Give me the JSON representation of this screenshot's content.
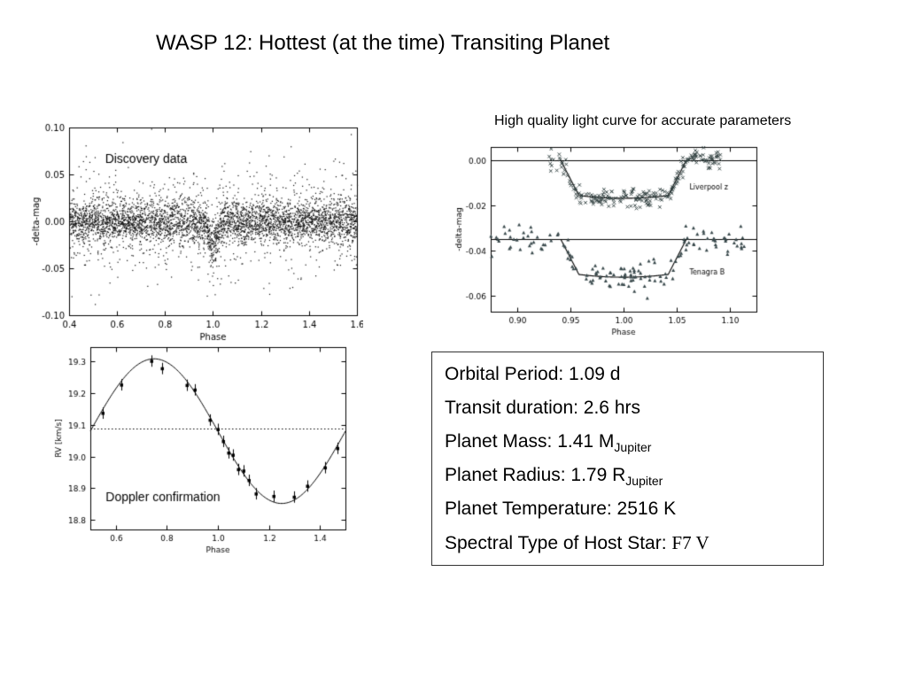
{
  "slide": {
    "title": "WASP 12: Hottest (at the time) Transiting Planet"
  },
  "info_box": {
    "lines": [
      {
        "main": "Orbital Period: 1.09 d"
      },
      {
        "main": "Transit duration: 2.6 hrs"
      },
      {
        "main": "Planet Mass: 1.41 M",
        "subscript": "Jupiter"
      },
      {
        "main": "Planet Radius: 1.79 R",
        "subscript": "Jupiter"
      },
      {
        "main": "Planet Temperature: 2516 K"
      },
      {
        "main": "Spectral Type of Host Star: ",
        "serif": "F7 V"
      }
    ]
  },
  "chart_data": [
    {
      "type": "scatter",
      "annotation": "Discovery data",
      "xlabel": "Phase",
      "ylabel": "-delta-mag",
      "xlim": [
        0.4,
        1.6
      ],
      "ylim": [
        -0.1,
        0.1
      ],
      "xticks": [
        0.4,
        0.6,
        0.8,
        1.0,
        1.2,
        1.4,
        1.6
      ],
      "yticks": [
        0.1,
        0.05,
        0.0,
        -0.05,
        -0.1
      ],
      "xdec": 1,
      "ydec": 2,
      "n_points": 4500,
      "sigma_mix": [
        [
          0.7,
          0.01
        ],
        [
          0.18,
          0.019
        ],
        [
          0.12,
          0.034
        ]
      ],
      "transit": {
        "center": 1.0,
        "half_width": 0.03,
        "depth": 0.022
      }
    },
    {
      "type": "line+scatter",
      "title": "High quality light curve for accurate parameters",
      "xlabel": "Phase",
      "ylabel": "-delta-mag",
      "xlim": [
        0.875,
        1.125
      ],
      "ylim": [
        -0.067,
        0.006
      ],
      "xticks": [
        0.9,
        0.95,
        1.0,
        1.05,
        1.1
      ],
      "yticks": [
        0.0,
        -0.02,
        -0.04,
        -0.06
      ],
      "xdec": 2,
      "ydec": 2,
      "series": [
        {
          "name": "Liverpool z",
          "marker": "x",
          "color": "#2e3d3d",
          "baseline": 0.0,
          "depth": 0.0155,
          "ingress": 0.941,
          "flat_start": 0.958,
          "flat_end": 1.042,
          "egress": 1.059,
          "noise": 0.0022,
          "n": 230,
          "xmin": 0.93,
          "xmax": 1.095,
          "label_x": 1.062,
          "label_y": -0.013
        },
        {
          "name": "Tenagra B",
          "marker": "triangle",
          "color": "#37474a",
          "baseline": -0.035,
          "depth": 0.0155,
          "ingress": 0.941,
          "flat_start": 0.958,
          "flat_end": 1.042,
          "egress": 1.059,
          "noise": 0.003,
          "n": 150,
          "xmin": 0.875,
          "xmax": 1.115,
          "label_x": 1.062,
          "label_y": -0.0505
        }
      ]
    },
    {
      "type": "line+errorbar",
      "annotation": "Doppler confirmation",
      "xlabel": "Phase",
      "ylabel": "RV [km/s]",
      "xlim": [
        0.5,
        1.5
      ],
      "ylim": [
        18.77,
        19.345
      ],
      "xticks": [
        0.6,
        0.8,
        1.0,
        1.2,
        1.4
      ],
      "yticks": [
        19.3,
        19.2,
        19.1,
        19.0,
        18.9,
        18.8
      ],
      "xdec": 1,
      "ydec": 1,
      "mean_rv": 19.08,
      "semi_amplitude": 0.228,
      "phase_of_max": 0.75,
      "dotted_line_y": 19.087,
      "point_phases": [
        0.55,
        0.62,
        0.74,
        0.78,
        0.88,
        0.91,
        0.97,
        1.0,
        1.02,
        1.04,
        1.06,
        1.08,
        1.1,
        1.12,
        1.15,
        1.22,
        1.3,
        1.35,
        1.42,
        1.47
      ],
      "point_noise": 0.012,
      "error_bar": 0.018
    }
  ]
}
